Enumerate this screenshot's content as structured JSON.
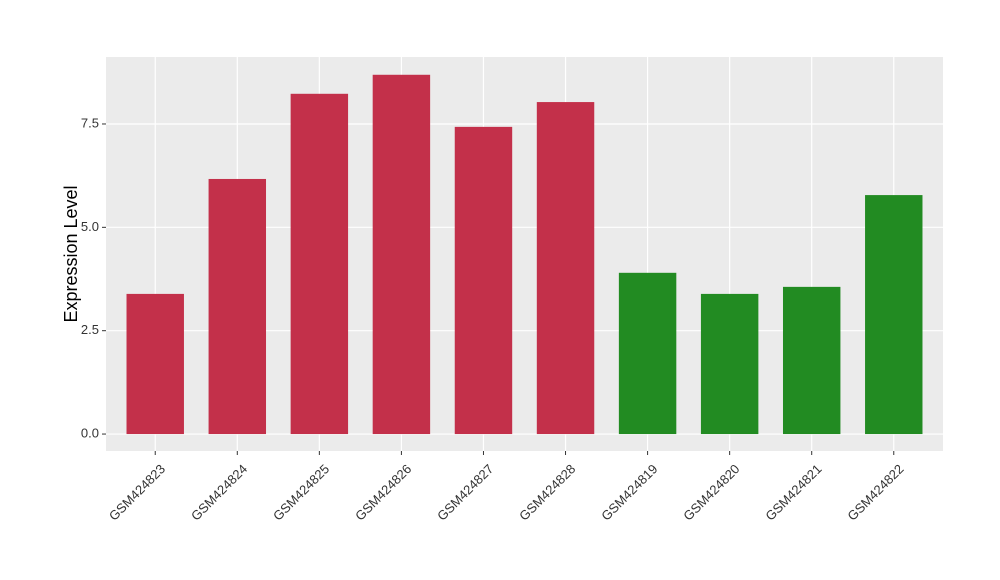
{
  "chart_data": {
    "type": "bar",
    "y_label": "Expression Level",
    "categories": [
      "GSM424823",
      "GSM424824",
      "GSM424825",
      "GSM424826",
      "GSM424827",
      "GSM424828",
      "GSM424819",
      "GSM424820",
      "GSM424821",
      "GSM424822"
    ],
    "values": [
      3.39,
      6.17,
      8.23,
      8.69,
      7.43,
      8.03,
      3.9,
      3.39,
      3.56,
      5.78
    ],
    "colors": [
      "#c3304a",
      "#c3304a",
      "#c3304a",
      "#c3304a",
      "#c3304a",
      "#c3304a",
      "#228b22",
      "#228b22",
      "#228b22",
      "#228b22"
    ],
    "ylim": [
      -0.41,
      9.12
    ],
    "yticks": [
      {
        "value": 0,
        "label": "0.0"
      },
      2.5,
      {
        "value": 5,
        "label": "5.0"
      },
      7.5
    ],
    "grid": true
  }
}
